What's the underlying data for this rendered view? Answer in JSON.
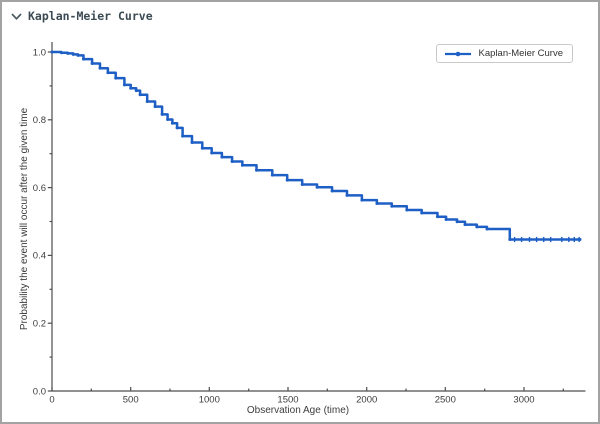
{
  "panel": {
    "title": "Kaplan-Meier Curve",
    "chevron_icon": "chevron-down"
  },
  "colors": {
    "curve": "#1e5fc5",
    "axis": "#4d4d4d",
    "tick_text": "#3d3d3d",
    "header_text": "#3c4a53",
    "panel_border": "#a3a3a3",
    "legend_border": "#c9c9c9"
  },
  "legend": {
    "label": "Kaplan-Meier Curve",
    "position": "upper right"
  },
  "chart_data": {
    "type": "line",
    "subtype": "kaplan-meier step function",
    "title": "",
    "xlabel": "Observation Age (time)",
    "ylabel": "Probability the event will occur after the given time",
    "xlim": [
      0,
      3390
    ],
    "ylim": [
      0.0,
      1.0
    ],
    "grid": false,
    "x_ticks": [
      [
        0,
        "0"
      ],
      [
        500,
        "500"
      ],
      [
        1000,
        "1000"
      ],
      [
        1500,
        "1500"
      ],
      [
        2000,
        "2000"
      ],
      [
        2500,
        "2500"
      ],
      [
        3000,
        "3000"
      ]
    ],
    "y_ticks": [
      [
        0.0,
        "0.0"
      ],
      [
        0.2,
        "0.2"
      ],
      [
        0.4,
        "0.4"
      ],
      [
        0.6,
        "0.6"
      ],
      [
        0.8,
        "0.8"
      ],
      [
        1.0,
        "1.0"
      ]
    ],
    "x_minor_ticks": [
      250,
      750,
      1250,
      1750,
      2250,
      2750,
      3250
    ],
    "y_minor_ticks": [
      0.1,
      0.3,
      0.5,
      0.7,
      0.9
    ],
    "legend_entries": [
      "Kaplan-Meier Curve"
    ],
    "series": [
      {
        "name": "Kaplan-Meier Curve",
        "step": "after",
        "points": [
          [
            0,
            1.0
          ],
          [
            60,
            0.998
          ],
          [
            100,
            0.996
          ],
          [
            135,
            0.993
          ],
          [
            165,
            0.99
          ],
          [
            200,
            0.979
          ],
          [
            255,
            0.966
          ],
          [
            305,
            0.952
          ],
          [
            355,
            0.939
          ],
          [
            405,
            0.923
          ],
          [
            460,
            0.903
          ],
          [
            500,
            0.893
          ],
          [
            535,
            0.886
          ],
          [
            560,
            0.874
          ],
          [
            605,
            0.854
          ],
          [
            655,
            0.839
          ],
          [
            700,
            0.816
          ],
          [
            735,
            0.801
          ],
          [
            765,
            0.79
          ],
          [
            795,
            0.776
          ],
          [
            830,
            0.752
          ],
          [
            890,
            0.733
          ],
          [
            955,
            0.716
          ],
          [
            1015,
            0.702
          ],
          [
            1080,
            0.69
          ],
          [
            1145,
            0.677
          ],
          [
            1210,
            0.666
          ],
          [
            1300,
            0.651
          ],
          [
            1400,
            0.637
          ],
          [
            1495,
            0.622
          ],
          [
            1590,
            0.609
          ],
          [
            1685,
            0.601
          ],
          [
            1780,
            0.59
          ],
          [
            1875,
            0.577
          ],
          [
            1970,
            0.563
          ],
          [
            2065,
            0.553
          ],
          [
            2160,
            0.545
          ],
          [
            2255,
            0.534
          ],
          [
            2350,
            0.525
          ],
          [
            2450,
            0.514
          ],
          [
            2505,
            0.506
          ],
          [
            2575,
            0.499
          ],
          [
            2625,
            0.491
          ],
          [
            2700,
            0.484
          ],
          [
            2765,
            0.478
          ],
          [
            2910,
            0.447
          ],
          [
            3356,
            0.447
          ]
        ],
        "censor_marks_t": [
          2940,
          2985,
          3035,
          3080,
          3125,
          3170,
          3240,
          3285,
          3320,
          3350
        ],
        "final_value": 0.447
      }
    ]
  }
}
